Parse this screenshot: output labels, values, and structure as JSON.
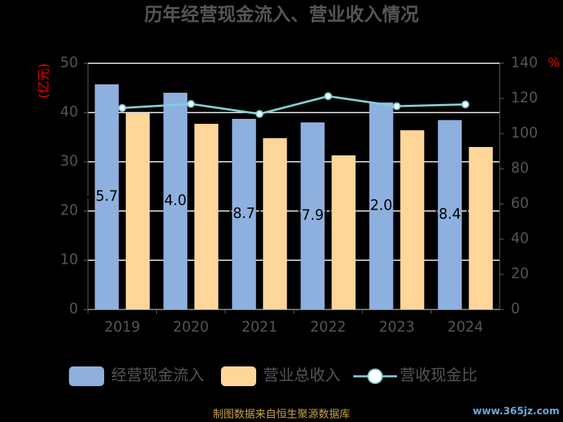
{
  "chart_data": {
    "type": "bar-line",
    "title": "历年经营现金流入、营业收入情况",
    "y_label": "(亿元)",
    "y2_label": "%",
    "categories": [
      "2019",
      "2020",
      "2021",
      "2022",
      "2023",
      "2024"
    ],
    "series": [
      {
        "name": "经营现金流入",
        "color": "#8eb0de",
        "type": "bar",
        "values": [
          45.73,
          44.02,
          38.71,
          37.99,
          42.04,
          38.47
        ],
        "data_labels": true
      },
      {
        "name": "营业总收入",
        "color": "#ffd699",
        "type": "bar",
        "values": [
          39.9,
          37.7,
          34.8,
          31.3,
          36.4,
          33.0
        ]
      },
      {
        "name": "营收现金比",
        "color": "#7fd0d4",
        "type": "line",
        "axis": "y2",
        "values": [
          114.6,
          116.9,
          111.2,
          121.3,
          115.6,
          116.6
        ]
      }
    ],
    "ylim": [
      0,
      50
    ],
    "yticks": [
      0,
      10,
      20,
      30,
      40,
      50
    ],
    "y2lim": [
      0,
      140
    ],
    "y2ticks": [
      0,
      20,
      40,
      60,
      80,
      100,
      120,
      140
    ],
    "grid": true,
    "source": "制图数据来自恒生聚源数据库",
    "watermark": "www.365jz.com"
  }
}
